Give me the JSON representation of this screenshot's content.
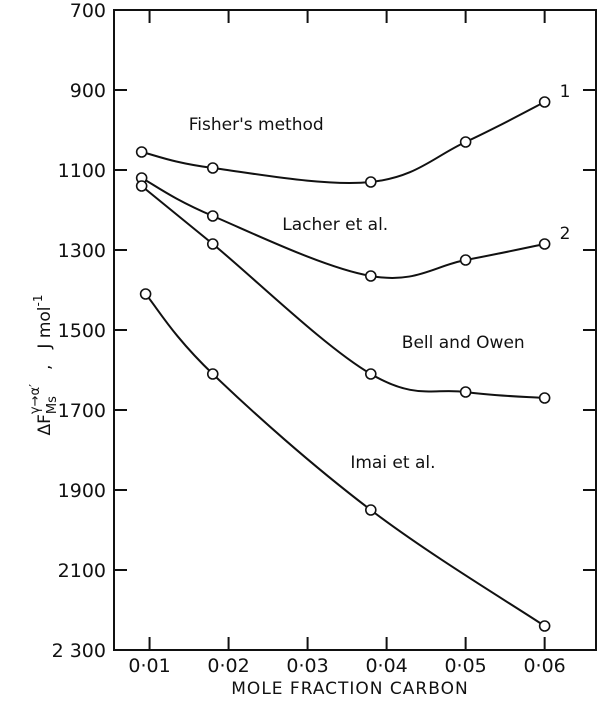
{
  "chart_data": {
    "type": "line",
    "xlabel": "MOLE FRACTION CARBON",
    "ylabel": {
      "delta": "ΔF",
      "superscript": "γ→α′",
      "subscript": "Ms",
      "separator": ",",
      "unit": "J mol",
      "unit_exponent": "-1"
    },
    "x_ticks": [
      "0·01",
      "0·02",
      "0·03",
      "0·04",
      "0·05",
      "0·06"
    ],
    "x_tick_values": [
      0.01,
      0.02,
      0.03,
      0.04,
      0.05,
      0.06
    ],
    "y_ticks": [
      "700",
      "900",
      "1100",
      "1300",
      "1500",
      "1700",
      "1900",
      "2100",
      "2 300"
    ],
    "y_tick_values": [
      700,
      900,
      1100,
      1300,
      1500,
      1700,
      1900,
      2100,
      2300
    ],
    "xlim": [
      0.0055,
      0.0665
    ],
    "ylim": [
      2300,
      700
    ],
    "y_inverted": true,
    "grid": false,
    "series": [
      {
        "name": "Fisher's method",
        "end_label": "1",
        "x": [
          0.009,
          0.018,
          0.038,
          0.05,
          0.06
        ],
        "y": [
          1055,
          1095,
          1130,
          1030,
          930
        ]
      },
      {
        "name": "Lacher et al.",
        "end_label": "2",
        "x": [
          0.009,
          0.018,
          0.038,
          0.05,
          0.06
        ],
        "y": [
          1120,
          1215,
          1365,
          1325,
          1285
        ]
      },
      {
        "name": "Bell and Owen",
        "x": [
          0.009,
          0.018,
          0.038,
          0.05,
          0.06
        ],
        "y": [
          1140,
          1285,
          1610,
          1655,
          1670
        ]
      },
      {
        "name": "Imai et al.",
        "x": [
          0.0095,
          0.018,
          0.038,
          0.06
        ],
        "y": [
          1410,
          1610,
          1950,
          2240
        ]
      }
    ]
  }
}
